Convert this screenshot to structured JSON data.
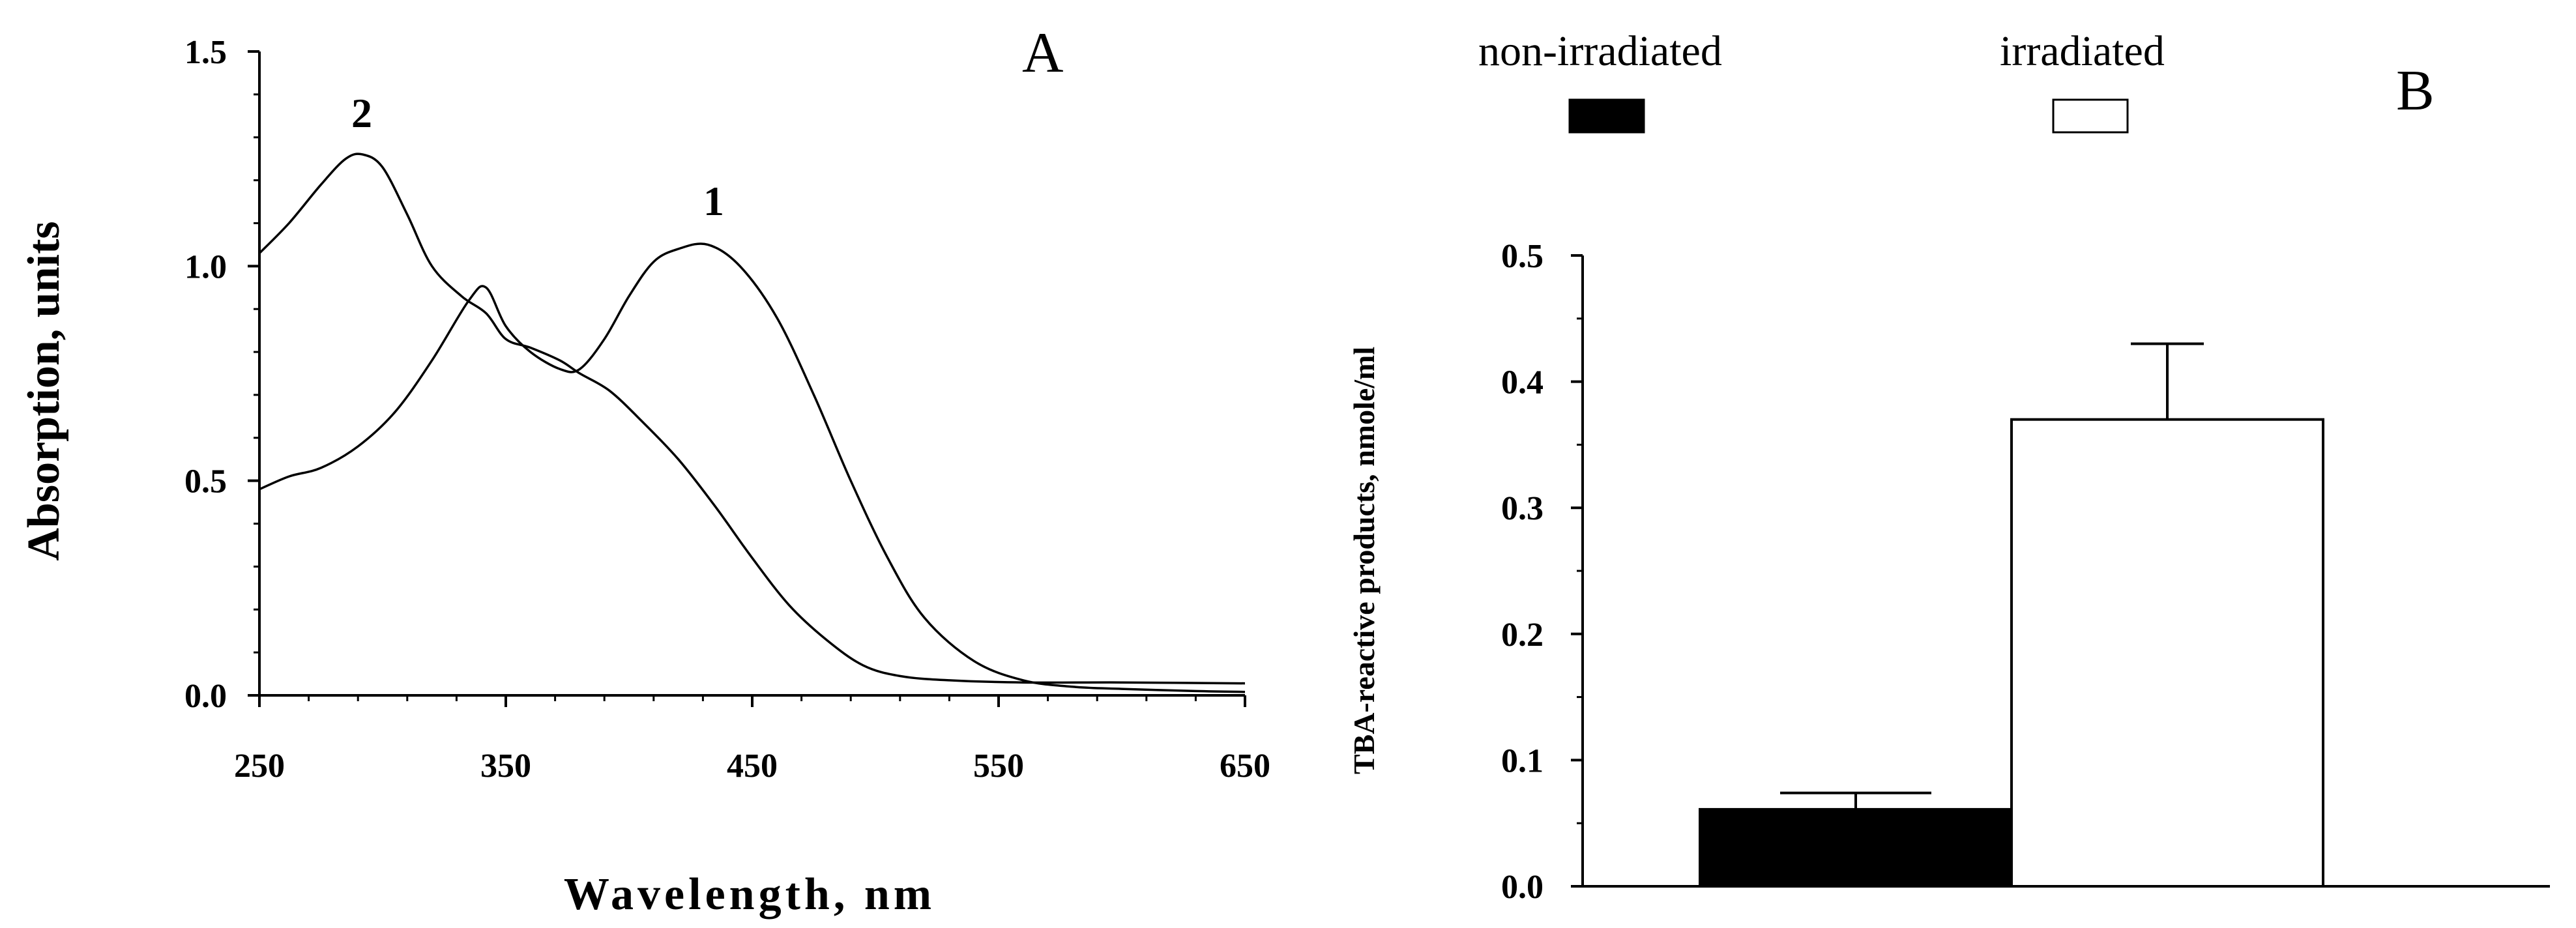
{
  "chart_data": [
    {
      "type": "line",
      "panel": "A",
      "xlabel": "Wavelength, nm",
      "ylabel": "Absorption, units",
      "xlim": [
        250,
        650
      ],
      "ylim": [
        0.0,
        1.5
      ],
      "x_ticks": [
        "250",
        "350",
        "450",
        "550",
        "650"
      ],
      "y_ticks": [
        "0.0",
        "0.5",
        "1.0",
        "1.5"
      ],
      "series": [
        {
          "name": "1",
          "x": [
            250,
            262,
            275,
            290,
            305,
            320,
            335,
            342,
            350,
            360,
            372,
            380,
            390,
            400,
            410,
            420,
            432,
            445,
            460,
            475,
            490,
            505,
            520,
            540,
            560,
            580,
            600,
            630,
            650
          ],
          "y": [
            0.48,
            0.51,
            0.53,
            0.58,
            0.66,
            0.78,
            0.92,
            0.95,
            0.86,
            0.8,
            0.76,
            0.76,
            0.83,
            0.93,
            1.01,
            1.04,
            1.05,
            1.0,
            0.88,
            0.7,
            0.5,
            0.32,
            0.18,
            0.08,
            0.035,
            0.02,
            0.015,
            0.01,
            0.008
          ]
        },
        {
          "name": "2",
          "x": [
            250,
            262,
            275,
            285,
            292,
            300,
            310,
            320,
            332,
            342,
            350,
            360,
            372,
            380,
            392,
            405,
            420,
            435,
            450,
            465,
            480,
            495,
            510,
            530,
            560,
            600,
            650
          ],
          "y": [
            1.03,
            1.1,
            1.19,
            1.25,
            1.26,
            1.23,
            1.12,
            1.0,
            0.93,
            0.89,
            0.83,
            0.81,
            0.78,
            0.75,
            0.71,
            0.64,
            0.55,
            0.44,
            0.32,
            0.21,
            0.13,
            0.07,
            0.045,
            0.035,
            0.03,
            0.03,
            0.028
          ]
        }
      ]
    },
    {
      "type": "bar",
      "panel": "B",
      "ylabel": "TBA-reactive products, nmole/ml",
      "ylim": [
        0.0,
        0.5
      ],
      "y_ticks": [
        "0.0",
        "0.1",
        "0.2",
        "0.3",
        "0.4",
        "0.5"
      ],
      "categories": [
        "non-irradiated",
        "irradiated"
      ],
      "values": [
        0.061,
        0.37
      ],
      "errors": [
        0.013,
        0.06
      ],
      "colors": [
        "#000000",
        "#ffffff"
      ]
    }
  ]
}
